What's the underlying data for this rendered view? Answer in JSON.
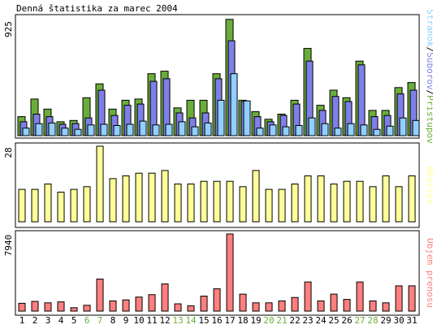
{
  "title": "Denná štatistika za marec 2004",
  "colors": {
    "background": "#ffffff",
    "panel": "#ffffff",
    "stroke": "#000000",
    "pristupov": "#6aad3a",
    "suborov": "#7f7fe8",
    "stranok": "#8fd0ff",
    "navstev": "#ffff99",
    "objem": "#ff7f7f",
    "weekend_label": "#6aad3a",
    "weekday_label": "#000000"
  },
  "chart_data": [
    {
      "type": "bar",
      "panel": "top",
      "ymax_label": "925",
      "ymax": 925,
      "legend": {
        "stranok": "Stránok",
        "sep1": "/",
        "suborov": "Súborov",
        "sep2": "/",
        "pristupov": "Prístupov"
      },
      "categories": [
        "1",
        "2",
        "3",
        "4",
        "5",
        "6",
        "7",
        "8",
        "9",
        "10",
        "11",
        "12",
        "13",
        "14",
        "15",
        "16",
        "17",
        "18",
        "19",
        "20",
        "21",
        "22",
        "23",
        "24",
        "25",
        "26",
        "27",
        "28",
        "29",
        "30",
        "31"
      ],
      "weekend_days": [
        "6",
        "7",
        "13",
        "14",
        "20",
        "21",
        "27",
        "28"
      ],
      "series": [
        {
          "name": "Prístupov",
          "key": "pristupov",
          "values": [
            150,
            290,
            210,
            110,
            120,
            300,
            410,
            210,
            280,
            290,
            490,
            510,
            220,
            280,
            280,
            490,
            920,
            280,
            190,
            130,
            170,
            280,
            690,
            240,
            360,
            300,
            590,
            200,
            200,
            380,
            420
          ]
        },
        {
          "name": "Súborov",
          "key": "suborov",
          "values": [
            110,
            170,
            150,
            90,
            95,
            140,
            360,
            160,
            240,
            250,
            430,
            450,
            180,
            140,
            180,
            450,
            750,
            270,
            150,
            110,
            160,
            250,
            590,
            200,
            310,
            270,
            560,
            150,
            160,
            330,
            360
          ]
        },
        {
          "name": "Stránok",
          "key": "stranok",
          "values": [
            60,
            95,
            100,
            60,
            50,
            85,
            90,
            80,
            90,
            115,
            85,
            90,
            110,
            70,
            100,
            280,
            490,
            275,
            60,
            85,
            70,
            80,
            140,
            95,
            60,
            95,
            85,
            50,
            75,
            140,
            120
          ]
        }
      ]
    },
    {
      "type": "bar",
      "panel": "middle",
      "ymax_label": "28",
      "ymax": 28,
      "legend": "Návštev",
      "categories": [
        "1",
        "2",
        "3",
        "4",
        "5",
        "6",
        "7",
        "8",
        "9",
        "10",
        "11",
        "12",
        "13",
        "14",
        "15",
        "16",
        "17",
        "18",
        "19",
        "20",
        "21",
        "22",
        "23",
        "24",
        "25",
        "26",
        "27",
        "28",
        "29",
        "30",
        "31"
      ],
      "series": [
        {
          "name": "Návštev",
          "key": "navstev",
          "values": [
            12,
            12,
            14,
            11,
            12,
            13,
            28,
            16,
            17,
            18,
            18,
            19,
            14,
            14,
            15,
            15,
            15,
            13,
            19,
            12,
            12,
            14,
            17,
            17,
            14,
            15,
            15,
            13,
            17,
            13,
            17
          ]
        }
      ]
    },
    {
      "type": "bar",
      "panel": "bottom",
      "ymax_label": "7940",
      "ymax": 7940,
      "legend": "Objem prenosu",
      "categories": [
        "1",
        "2",
        "3",
        "4",
        "5",
        "6",
        "7",
        "8",
        "9",
        "10",
        "11",
        "12",
        "13",
        "14",
        "15",
        "16",
        "17",
        "18",
        "19",
        "20",
        "21",
        "22",
        "23",
        "24",
        "25",
        "26",
        "27",
        "28",
        "29",
        "30",
        "31"
      ],
      "series": [
        {
          "name": "Objem prenosu",
          "key": "objem",
          "values": [
            800,
            1000,
            850,
            950,
            350,
            600,
            3300,
            1050,
            1150,
            1450,
            1700,
            2800,
            750,
            550,
            1550,
            2300,
            7940,
            1750,
            850,
            850,
            1050,
            1400,
            3000,
            1050,
            1750,
            1200,
            3000,
            1050,
            850,
            2600,
            2600
          ]
        }
      ]
    }
  ]
}
